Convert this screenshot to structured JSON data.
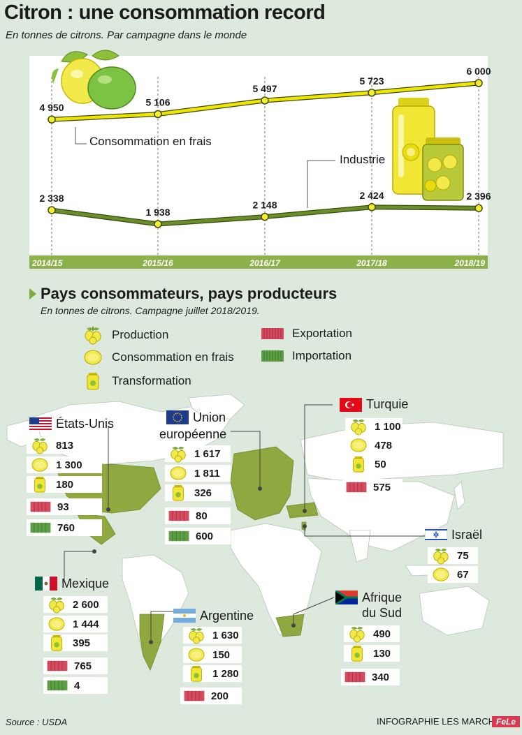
{
  "title": "Citron : une consommation record",
  "subtitle": "En tonnes de citrons. Par campagne dans le monde",
  "chart_data": {
    "type": "line",
    "categories": [
      "2014/15",
      "2015/16",
      "2016/17",
      "2017/18",
      "2018/19"
    ],
    "series": [
      {
        "name": "Consommation en frais",
        "values": [
          4950,
          5106,
          5497,
          5723,
          6000
        ],
        "labels": [
          "4 950",
          "5 106",
          "5 497",
          "5 723",
          "6 000"
        ],
        "color": "#efe500"
      },
      {
        "name": "Industrie",
        "values": [
          2338,
          1938,
          2148,
          2424,
          2396
        ],
        "labels": [
          "2 338",
          "1 938",
          "2 148",
          "2 424",
          "2 396"
        ],
        "color": "#6a8e28"
      }
    ],
    "grid": false
  },
  "section2": {
    "title": "Pays consommateurs, pays producteurs",
    "subtitle": "En tonnes de citrons. Campagne juillet 2018/2019."
  },
  "legend": {
    "production": "Production",
    "fresh": "Consommation en frais",
    "processing": "Transformation",
    "export": "Exportation",
    "import": "Importation"
  },
  "countries": {
    "usa": {
      "name": "États-Unis",
      "production": "813",
      "fresh": "1 300",
      "processing": "180",
      "export": "93",
      "import": "760"
    },
    "eu": {
      "name1": "Union",
      "name2": "européenne",
      "production": "1 617",
      "fresh": "1 811",
      "processing": "326",
      "export": "80",
      "import": "600"
    },
    "turkey": {
      "name": "Turquie",
      "production": "1 100",
      "fresh": "478",
      "processing": "50",
      "export": "575"
    },
    "israel": {
      "name": "Israël",
      "production": "75",
      "fresh": "67"
    },
    "mexico": {
      "name": "Mexique",
      "production": "2 600",
      "fresh": "1 444",
      "processing": "395",
      "export": "765",
      "import": "4"
    },
    "argentina": {
      "name": "Argentine",
      "production": "1 630",
      "fresh": "150",
      "processing": "1 280",
      "export": "200"
    },
    "south_africa": {
      "name1": "Afrique",
      "name2": "du Sud",
      "production": "490",
      "processing": "130",
      "export": "340"
    }
  },
  "colors": {
    "fresh_line": "#efe500",
    "industry_line": "#6a8e28",
    "timeline_bar": "#8cb04a",
    "export": "#d64a5e",
    "import": "#5d9e47",
    "map_land": "#ffffff",
    "map_highlight": "#8fa940",
    "background": "#dde9dd"
  },
  "source": "Source : USDA",
  "credit": "INFOGRAPHIE LES MARCHÉS",
  "credit_logo": "FeLe"
}
